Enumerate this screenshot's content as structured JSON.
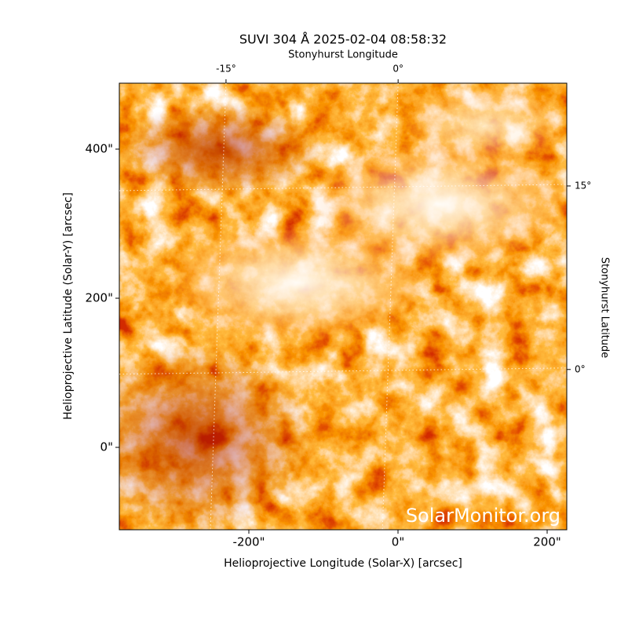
{
  "chart_data": {
    "type": "image",
    "title": "SUVI 304 Å 2025-02-04 08:58:32",
    "watermark": "SolarMonitor.org",
    "xlabel": "Helioprojective Longitude (Solar-X) [arcsec]",
    "ylabel": "Helioprojective Latitude (Solar-Y) [arcsec]",
    "x2label": "Stonyhurst Longitude",
    "y2label": "Stonyhurst Latitude",
    "xlim": [
      -373.7,
      226.3
    ],
    "ylim": [
      -110.5,
      488.4
    ],
    "xticks": [
      {
        "value": -200,
        "label": "-200\""
      },
      {
        "value": 0,
        "label": "0\""
      },
      {
        "value": 200,
        "label": "200\""
      }
    ],
    "yticks": [
      {
        "value": 0,
        "label": "0\""
      },
      {
        "value": 200,
        "label": "200\""
      },
      {
        "value": 400,
        "label": "400\""
      }
    ],
    "x2lim": [
      -24.3,
      14.7
    ],
    "x2ticks": [
      {
        "value": -15,
        "label": "-15°"
      },
      {
        "value": 0,
        "label": "0°"
      }
    ],
    "y2lim": [
      -13.1,
      23.4
    ],
    "y2ticks": [
      {
        "value": 0,
        "label": "0°"
      },
      {
        "value": 15,
        "label": "15°"
      }
    ],
    "grid": true
  }
}
